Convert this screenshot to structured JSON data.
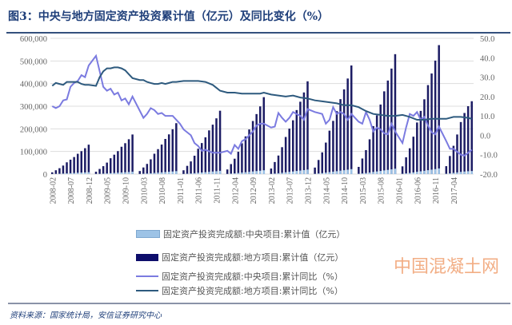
{
  "title": "图3：中央与地方固定资产投资累计值（亿元）及同比变化（%）",
  "source": "资料来源：国家统计局，安信证券研究中心",
  "watermark": "中国混凝土网",
  "chart_data": {
    "type": "bar+line",
    "title": "中央与地方固定资产投资累计值（亿元）及同比变化（%）",
    "start_month": "2008-02",
    "end_month": "2017-09",
    "x_tick_labels": [
      "2008-02",
      "2008-07",
      "2008-12",
      "2009-05",
      "2009-10",
      "2010-03",
      "2010-08",
      "2011-01",
      "2011-06",
      "2011-11",
      "2012-04",
      "2012-09",
      "2013-02",
      "2013-07",
      "2013-12",
      "2014-05",
      "2014-10",
      "2015-03",
      "2015-08",
      "2016-01",
      "2016-06",
      "2016-11",
      "2017-04"
    ],
    "y_left": {
      "min": 0,
      "max": 600000,
      "ticks": [
        "0",
        "100,000",
        "200,000",
        "300,000",
        "400,000",
        "500,000",
        "600,000"
      ]
    },
    "y_right": {
      "min": -20,
      "max": 50,
      "ticks": [
        "-20.0",
        "-10.0",
        "0.0",
        "10.0",
        "20.0",
        "30.0",
        "40.0",
        "50.0"
      ]
    },
    "grid": true,
    "legend_position": "bottom",
    "legend": [
      "固定资产投资完成额:中央项目:累计值（亿元）",
      "固定资产投资完成额:地方项目:累计值（亿元）",
      "固定资产投资完成额:中央项目:累计同比（%）",
      "固定资产投资完成额:地方项目:累计同比（%）"
    ],
    "colors": {
      "central_bar": "#9dc3e6",
      "local_bar": "#1c1c64",
      "central_line": "#7b7be0",
      "local_line": "#2e5a7e"
    },
    "local_cumulative": {
      "2008": [
        7800,
        16900,
        26000,
        37700,
        52000,
        63700,
        75400,
        89700,
        101400,
        114400,
        130000
      ],
      "2009": [
        10500,
        22750,
        35000,
        50750,
        70000,
        85750,
        101500,
        120750,
        136500,
        154000,
        175000
      ],
      "2010": [
        13500,
        29250,
        45000,
        65250,
        90000,
        110250,
        130500,
        155250,
        175500,
        198000,
        225000
      ],
      "2011": [
        16800,
        36400,
        56000,
        81200,
        112000,
        137200,
        162400,
        193200,
        218400,
        246400,
        280000
      ],
      "2012": [
        20400,
        44200,
        68000,
        98600,
        136000,
        166600,
        197200,
        234600,
        265200,
        299200,
        340000
      ],
      "2013": [
        24600,
        53300,
        82000,
        118900,
        164000,
        200900,
        237800,
        282900,
        319800,
        360800,
        410000
      ],
      "2014": [
        28800,
        62400,
        96000,
        139200,
        192000,
        235200,
        278400,
        331200,
        374400,
        422400,
        480000
      ],
      "2015": [
        31800,
        68900,
        106000,
        153700,
        212000,
        259700,
        307400,
        365700,
        413400,
        466400,
        530000
      ],
      "2016": [
        34200,
        74100,
        114000,
        165300,
        228000,
        279300,
        330600,
        393300,
        444600,
        501600,
        570000
      ],
      "2017": [
        35000,
        80000,
        125000,
        175000,
        230000,
        270000,
        300000,
        322000
      ]
    },
    "central_cumulative": {
      "2008": [
        500,
        1100,
        1700,
        2400,
        3400,
        4100,
        4900,
        5800,
        6600,
        7400,
        8400
      ],
      "2009": [
        600,
        1400,
        2100,
        3000,
        4200,
        5100,
        6100,
        7200,
        8200,
        9200,
        10500
      ],
      "2010": [
        800,
        1700,
        2600,
        3800,
        5200,
        6400,
        7600,
        9000,
        10200,
        11500,
        13000
      ],
      "2011": [
        900,
        1900,
        2900,
        4200,
        5800,
        7100,
        8400,
        10000,
        11300,
        12800,
        14500
      ],
      "2012": [
        1000,
        2200,
        3400,
        4900,
        6800,
        8300,
        9900,
        11700,
        13300,
        15000,
        17000
      ],
      "2013": [
        1200,
        2600,
        4000,
        5800,
        8000,
        9800,
        11600,
        13800,
        15600,
        17600,
        20000
      ],
      "2014": [
        1300,
        2900,
        4400,
        6400,
        8800,
        10800,
        12800,
        15200,
        17200,
        19400,
        22000
      ],
      "2015": [
        1400,
        3100,
        4800,
        6900,
        9500,
        11700,
        13800,
        16400,
        18600,
        21000,
        23800
      ],
      "2016": [
        1500,
        3300,
        5000,
        7300,
        10000,
        12300,
        14600,
        17300,
        19600,
        22100,
        25000
      ],
      "2017": [
        1500,
        3400,
        5300,
        7400,
        9700,
        11400,
        12700,
        13600
      ]
    },
    "central_yoy_keypoints": [
      [
        "2008-02",
        15
      ],
      [
        "2008-03",
        14
      ],
      [
        "2008-04",
        15
      ],
      [
        "2008-05",
        18
      ],
      [
        "2008-06",
        18.5
      ],
      [
        "2008-07",
        25
      ],
      [
        "2008-08",
        27
      ],
      [
        "2008-09",
        28
      ],
      [
        "2008-10",
        31
      ],
      [
        "2008-11",
        30
      ],
      [
        "2008-12",
        36
      ],
      [
        "2009-02",
        41
      ],
      [
        "2009-03",
        33
      ],
      [
        "2009-04",
        25
      ],
      [
        "2009-05",
        23
      ],
      [
        "2009-06",
        24
      ],
      [
        "2009-07",
        21
      ],
      [
        "2009-08",
        22
      ],
      [
        "2009-09",
        18
      ],
      [
        "2009-10",
        19
      ],
      [
        "2009-11",
        16
      ],
      [
        "2009-12",
        20
      ],
      [
        "2010-03",
        9
      ],
      [
        "2010-04",
        11
      ],
      [
        "2010-05",
        14
      ],
      [
        "2010-06",
        13
      ],
      [
        "2010-07",
        11
      ],
      [
        "2010-08",
        11.5
      ],
      [
        "2010-09",
        10
      ],
      [
        "2010-11",
        10
      ],
      [
        "2011-01",
        6
      ],
      [
        "2011-02",
        3
      ],
      [
        "2011-04",
        0
      ],
      [
        "2011-05",
        -4
      ],
      [
        "2011-06",
        -5.5
      ],
      [
        "2011-07",
        -8
      ],
      [
        "2011-08",
        -7.5
      ],
      [
        "2011-10",
        -9
      ],
      [
        "2011-12",
        -9
      ],
      [
        "2012-02",
        -8
      ],
      [
        "2012-03",
        -9.5
      ],
      [
        "2012-04",
        -5
      ],
      [
        "2012-05",
        -7
      ],
      [
        "2012-06",
        -3
      ],
      [
        "2012-07",
        -2
      ],
      [
        "2012-08",
        0
      ],
      [
        "2012-09",
        2
      ],
      [
        "2012-10",
        5
      ],
      [
        "2012-11",
        6
      ],
      [
        "2012-12",
        6
      ],
      [
        "2013-02",
        4
      ],
      [
        "2013-03",
        4.5
      ],
      [
        "2013-04",
        11.5
      ],
      [
        "2013-05",
        9
      ],
      [
        "2013-06",
        7
      ],
      [
        "2013-07",
        9
      ],
      [
        "2013-08",
        12
      ],
      [
        "2013-09",
        11
      ],
      [
        "2013-10",
        10
      ],
      [
        "2013-11",
        8
      ],
      [
        "2013-12",
        13.5
      ],
      [
        "2014-02",
        12
      ],
      [
        "2014-03",
        11.5
      ],
      [
        "2014-04",
        11
      ],
      [
        "2014-05",
        6
      ],
      [
        "2014-06",
        8
      ],
      [
        "2014-07",
        14.5
      ],
      [
        "2014-08",
        11
      ],
      [
        "2014-09",
        12
      ],
      [
        "2014-10",
        11
      ],
      [
        "2014-11",
        8
      ],
      [
        "2014-12",
        11
      ],
      [
        "2015-02",
        7
      ],
      [
        "2015-03",
        6
      ],
      [
        "2015-04",
        12
      ],
      [
        "2015-05",
        8
      ],
      [
        "2015-06",
        2
      ],
      [
        "2015-07",
        4
      ],
      [
        "2015-08",
        3
      ],
      [
        "2015-09",
        1
      ],
      [
        "2015-10",
        0.5
      ],
      [
        "2015-11",
        6
      ],
      [
        "2015-12",
        2
      ],
      [
        "2016-01",
        -1
      ],
      [
        "2016-02",
        -4
      ],
      [
        "2016-03",
        4
      ],
      [
        "2016-04",
        11
      ],
      [
        "2016-05",
        10
      ],
      [
        "2016-06",
        12
      ],
      [
        "2016-07",
        8
      ],
      [
        "2016-08",
        9.5
      ],
      [
        "2016-09",
        5
      ],
      [
        "2016-10",
        1.5
      ],
      [
        "2016-11",
        0.5
      ],
      [
        "2016-12",
        4.5
      ],
      [
        "2017-02",
        -3
      ],
      [
        "2017-03",
        -7
      ],
      [
        "2017-04",
        -7
      ],
      [
        "2017-05",
        -8.5
      ],
      [
        "2017-06",
        -10
      ],
      [
        "2017-07",
        -10.5
      ],
      [
        "2017-08",
        -9
      ],
      [
        "2017-09",
        -7.5
      ]
    ],
    "local_yoy_keypoints": [
      [
        "2008-02",
        25.5
      ],
      [
        "2008-03",
        27
      ],
      [
        "2008-04",
        26.5
      ],
      [
        "2008-05",
        26
      ],
      [
        "2008-06",
        27.5
      ],
      [
        "2008-07",
        27.5
      ],
      [
        "2008-08",
        27.5
      ],
      [
        "2008-09",
        27.5
      ],
      [
        "2008-10",
        26.5
      ],
      [
        "2008-11",
        26
      ],
      [
        "2008-12",
        26
      ],
      [
        "2009-02",
        25.5
      ],
      [
        "2009-03",
        30
      ],
      [
        "2009-04",
        33
      ],
      [
        "2009-05",
        34.5
      ],
      [
        "2009-06",
        34.5
      ],
      [
        "2009-07",
        35
      ],
      [
        "2009-08",
        35
      ],
      [
        "2009-09",
        34.5
      ],
      [
        "2009-10",
        33.5
      ],
      [
        "2009-11",
        31.5
      ],
      [
        "2009-12",
        29.5
      ],
      [
        "2010-02",
        28.5
      ],
      [
        "2010-03",
        28.5
      ],
      [
        "2010-04",
        27.5
      ],
      [
        "2010-05",
        27
      ],
      [
        "2010-06",
        26.5
      ],
      [
        "2010-07",
        26.5
      ],
      [
        "2010-08",
        27
      ],
      [
        "2010-09",
        26.5
      ],
      [
        "2010-10",
        27
      ],
      [
        "2010-11",
        27.5
      ],
      [
        "2010-12",
        27.5
      ],
      [
        "2011-02",
        28
      ],
      [
        "2011-04",
        28
      ],
      [
        "2011-06",
        28
      ],
      [
        "2011-08",
        27.5
      ],
      [
        "2011-10",
        26
      ],
      [
        "2011-11",
        24.5
      ],
      [
        "2011-12",
        23
      ],
      [
        "2012-02",
        22
      ],
      [
        "2012-04",
        22
      ],
      [
        "2012-06",
        21.5
      ],
      [
        "2012-08",
        21.5
      ],
      [
        "2012-10",
        21.5
      ],
      [
        "2012-11",
        21.5
      ],
      [
        "2012-12",
        22
      ],
      [
        "2013-02",
        21
      ],
      [
        "2013-04",
        20.5
      ],
      [
        "2013-06",
        20
      ],
      [
        "2013-08",
        20.5
      ],
      [
        "2013-10",
        19.5
      ],
      [
        "2013-12",
        19
      ],
      [
        "2014-02",
        18
      ],
      [
        "2014-04",
        17.5
      ],
      [
        "2014-06",
        17
      ],
      [
        "2014-08",
        16.5
      ],
      [
        "2014-10",
        15.5
      ],
      [
        "2014-12",
        15.5
      ],
      [
        "2015-02",
        14.5
      ],
      [
        "2015-04",
        12.5
      ],
      [
        "2015-06",
        11
      ],
      [
        "2015-08",
        10.5
      ],
      [
        "2015-10",
        10
      ],
      [
        "2015-12",
        10
      ],
      [
        "2016-02",
        10.5
      ],
      [
        "2016-04",
        9.5
      ],
      [
        "2016-06",
        8
      ],
      [
        "2016-08",
        8
      ],
      [
        "2016-10",
        8.5
      ],
      [
        "2016-12",
        8.5
      ],
      [
        "2017-02",
        8.5
      ],
      [
        "2017-04",
        9.5
      ],
      [
        "2017-06",
        9.5
      ],
      [
        "2017-08",
        9
      ],
      [
        "2017-09",
        8.5
      ]
    ]
  }
}
